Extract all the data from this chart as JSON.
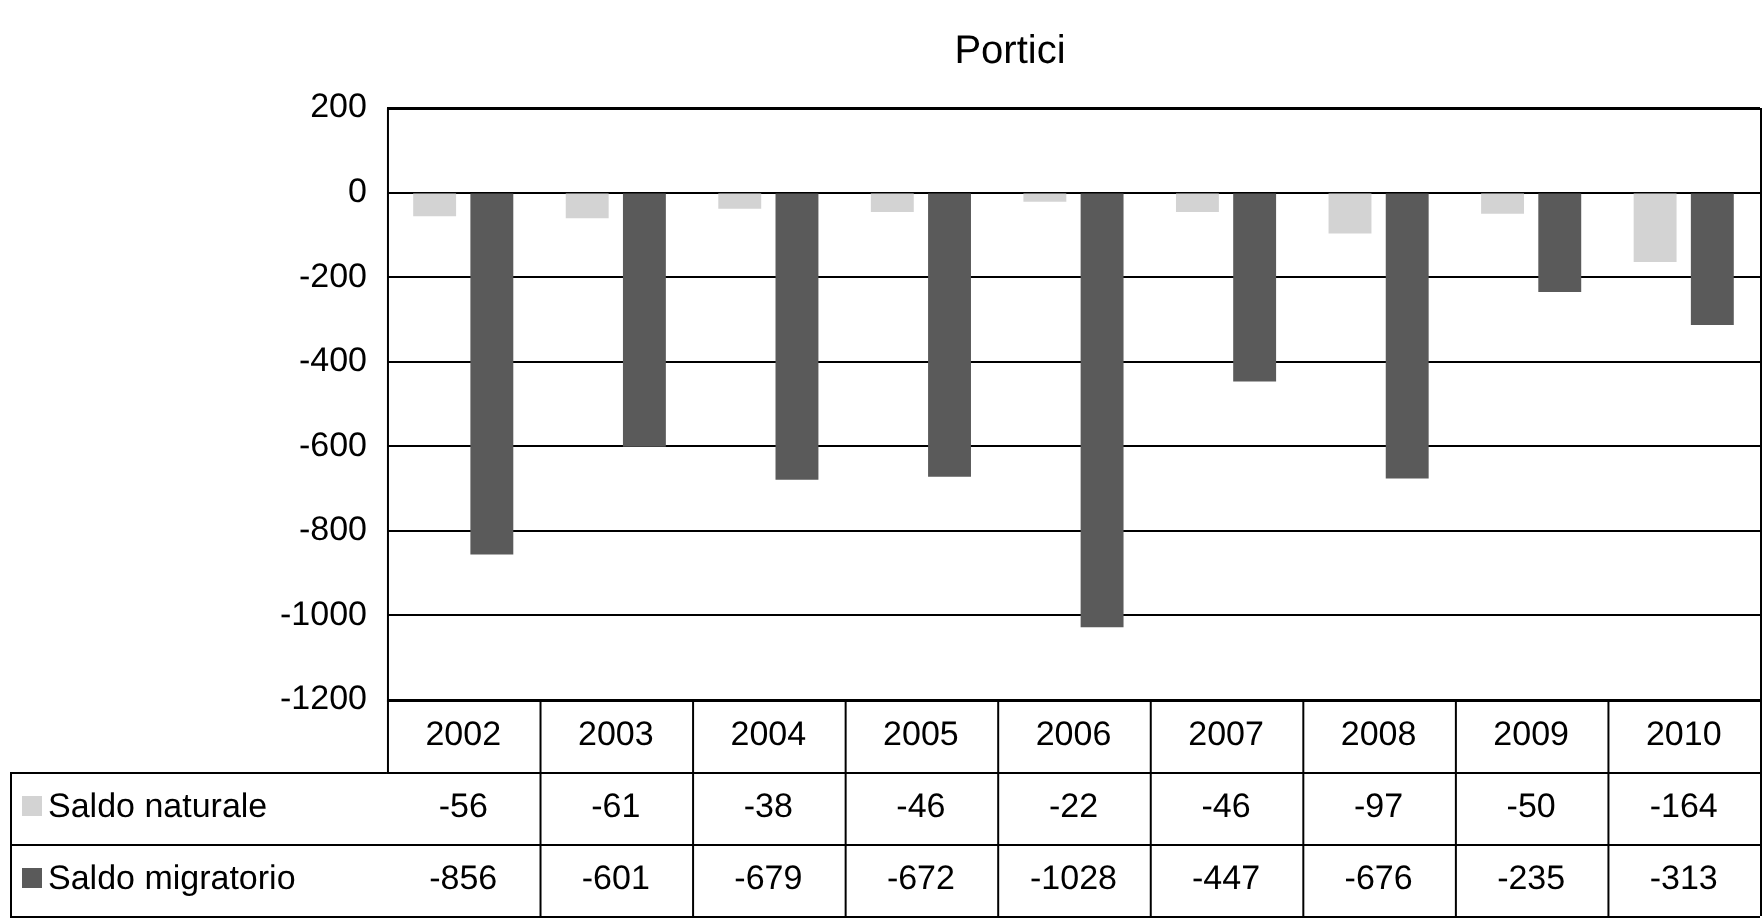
{
  "chart_data": {
    "type": "bar",
    "title": "Portici",
    "categories": [
      "2002",
      "2003",
      "2004",
      "2005",
      "2006",
      "2007",
      "2008",
      "2009",
      "2010"
    ],
    "series": [
      {
        "name": "Saldo naturale",
        "color": "#d3d3d3",
        "values": [
          -56,
          -61,
          -38,
          -46,
          -22,
          -46,
          -97,
          -50,
          -164
        ]
      },
      {
        "name": "Saldo migratorio",
        "color": "#5a5a5a",
        "values": [
          -856,
          -601,
          -679,
          -672,
          -1028,
          -447,
          -676,
          -235,
          -313
        ]
      }
    ],
    "ylim": [
      -1200,
      200
    ],
    "yticks": [
      -1200,
      -1000,
      -800,
      -600,
      -400,
      -200,
      0,
      200
    ],
    "grid": "y",
    "legend": "bottom",
    "data_labels": true
  }
}
